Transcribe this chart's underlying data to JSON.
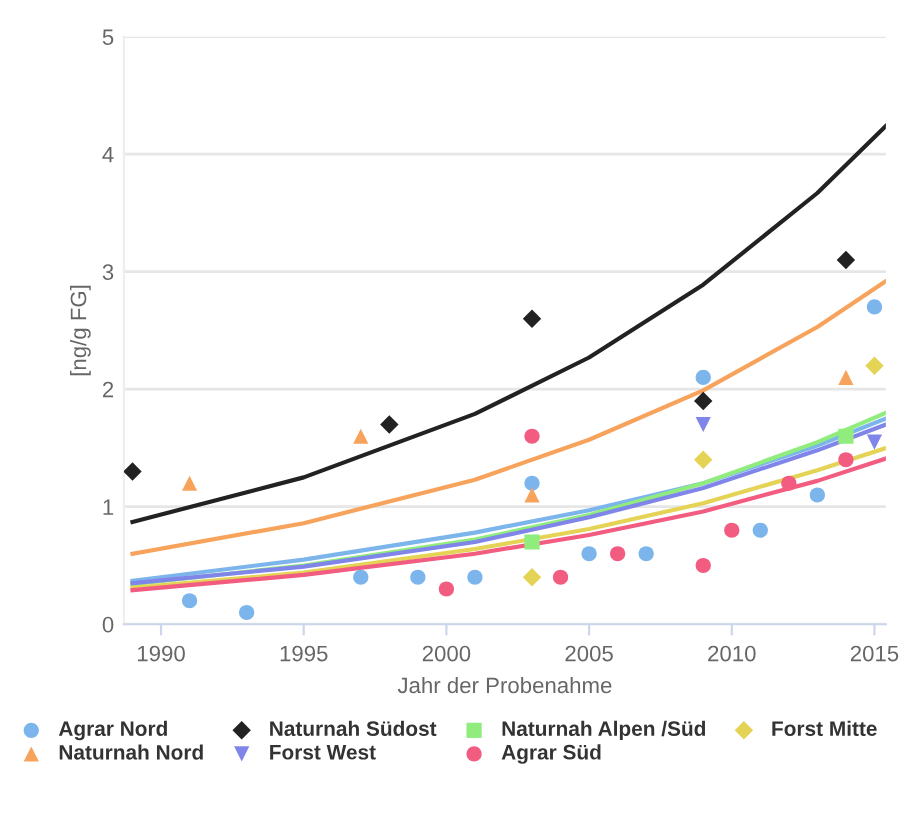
{
  "chart_data": {
    "type": "scatter",
    "xlabel": "Jahr der Probenahme",
    "ylabel": "[ng/g FG]",
    "xlim": [
      1988.7,
      2015.4
    ],
    "xticks": [
      1990,
      1995,
      2000,
      2005,
      2010,
      2015
    ],
    "ylim": [
      0,
      5
    ],
    "yticks": [
      0,
      1,
      2,
      3,
      4,
      5
    ],
    "grid": "y",
    "legend": "bottom",
    "series": [
      {
        "name": "Agrar Nord",
        "color": "#7cb5ec",
        "marker": "circle",
        "x": [
          1991,
          1993,
          1997,
          1999,
          2001,
          2003,
          2005,
          2007,
          2009,
          2011,
          2013,
          2015
        ],
        "values": [
          0.2,
          0.1,
          0.4,
          0.4,
          0.4,
          1.2,
          0.6,
          0.6,
          2.1,
          0.8,
          1.1,
          2.7
        ]
      },
      {
        "name": "Naturnah Nord",
        "color": "#f7a35c",
        "marker": "triangle",
        "x": [
          1991,
          1997,
          2003,
          2014
        ],
        "values": [
          1.2,
          1.6,
          1.1,
          2.1
        ]
      },
      {
        "name": "Naturnah Südost",
        "color": "#222222",
        "marker": "diamond",
        "x": [
          1989,
          1998,
          2003,
          2009,
          2014
        ],
        "values": [
          1.3,
          1.7,
          2.6,
          1.9,
          3.1
        ]
      },
      {
        "name": "Forst West",
        "color": "#8085e9",
        "marker": "triangle_down",
        "x": [
          2009,
          2015
        ],
        "values": [
          1.7,
          1.55
        ]
      },
      {
        "name": "Naturnah Alpen /Süd",
        "color": "#90ed7d",
        "marker": "square",
        "x": [
          2003,
          2014
        ],
        "values": [
          0.7,
          1.6
        ]
      },
      {
        "name": "Agrar Süd",
        "color": "#f15c80",
        "marker": "circle",
        "x": [
          2000,
          2003,
          2004,
          2006,
          2009,
          2010,
          2012,
          2014
        ],
        "values": [
          0.3,
          1.6,
          0.4,
          0.6,
          0.5,
          0.8,
          1.2,
          1.4
        ]
      },
      {
        "name": "Forst Mitte",
        "color": "#e4d354",
        "marker": "diamond",
        "x": [
          2003,
          2009,
          2015
        ],
        "values": [
          0.4,
          1.4,
          2.2
        ]
      },
      {
        "type": "line",
        "color": "#222222",
        "x": [
          1989,
          1995,
          2001,
          2005,
          2009,
          2013,
          2015.4
        ],
        "values": [
          0.87,
          1.25,
          1.79,
          2.27,
          2.89,
          3.67,
          4.24
        ]
      },
      {
        "type": "line",
        "color": "#f7a35c",
        "x": [
          1989,
          1995,
          2001,
          2005,
          2009,
          2013,
          2015.4
        ],
        "values": [
          0.6,
          0.86,
          1.23,
          1.57,
          1.99,
          2.53,
          2.92
        ]
      },
      {
        "type": "line",
        "color": "#7cb5ec",
        "x": [
          1989,
          1995,
          2001,
          2005,
          2009,
          2013,
          2015.4
        ],
        "values": [
          0.37,
          0.55,
          0.78,
          0.97,
          1.2,
          1.52,
          1.75
        ]
      },
      {
        "type": "line",
        "color": "#90ed7d",
        "x": [
          1989,
          1995,
          2001,
          2005,
          2009,
          2013,
          2015.4
        ],
        "values": [
          0.34,
          0.5,
          0.72,
          0.93,
          1.2,
          1.55,
          1.8
        ]
      },
      {
        "type": "line",
        "color": "#8085e9",
        "x": [
          1989,
          1995,
          2001,
          2005,
          2009,
          2013,
          2015.4
        ],
        "values": [
          0.35,
          0.49,
          0.7,
          0.91,
          1.16,
          1.48,
          1.7
        ]
      },
      {
        "type": "line",
        "color": "#e4d354",
        "x": [
          1989,
          1995,
          2001,
          2005,
          2009,
          2013,
          2015.4
        ],
        "values": [
          0.31,
          0.44,
          0.64,
          0.81,
          1.03,
          1.31,
          1.5
        ]
      },
      {
        "type": "line",
        "color": "#f15c80",
        "x": [
          1989,
          1995,
          2001,
          2005,
          2009,
          2013,
          2015.4
        ],
        "values": [
          0.29,
          0.42,
          0.6,
          0.76,
          0.96,
          1.22,
          1.41
        ]
      }
    ]
  }
}
